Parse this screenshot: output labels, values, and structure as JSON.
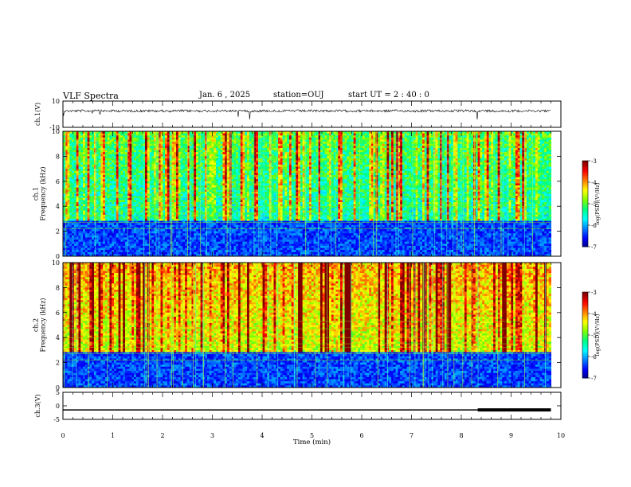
{
  "header": {
    "title": "VLF Spectra",
    "date": "Jan. 6 , 2025",
    "station": "station=OUJ",
    "start_ut": "start UT =  2 : 40 : 0"
  },
  "chart_data": [
    {
      "type": "line",
      "panel": "ch1-waveform",
      "ylabel": "ch.1(V)",
      "ylim": [
        -10,
        10
      ],
      "y_ticks": [
        "10",
        "-10"
      ],
      "xlim": [
        0,
        10
      ],
      "series": [
        {
          "values": [
            2.5
          ]
        }
      ]
    },
    {
      "type": "heatmap",
      "panel": "ch1-spectrogram",
      "ylabel": "ch.1\nFrequency (kHz)",
      "ylim": [
        0,
        10
      ],
      "y_ticks": [
        "0",
        "2",
        "4",
        "6",
        "8",
        "10"
      ],
      "xlim": [
        0,
        9.8
      ],
      "colorbar": {
        "label": "log(PSD)(V²/Hz)",
        "range": [
          -7,
          -3
        ],
        "ticks": [
          "-3",
          "-4",
          "-5",
          "-6",
          "-7"
        ]
      }
    },
    {
      "type": "heatmap",
      "panel": "ch2-spectrogram",
      "ylabel": "ch.2\nFrequency (kHz)",
      "ylim": [
        0,
        10
      ],
      "y_ticks": [
        "0",
        "2",
        "4",
        "6",
        "8",
        "10"
      ],
      "xlim": [
        0,
        9.8
      ],
      "colorbar": {
        "label": "log(PSD)(V²/Hz)",
        "range": [
          -7,
          -3
        ],
        "ticks": [
          "-3",
          "-4",
          "-5",
          "-6",
          "-7"
        ]
      }
    },
    {
      "type": "line",
      "panel": "ch3-timecode",
      "ylabel": "ch.3(V)",
      "ylim": [
        -5,
        5
      ],
      "y_ticks": [
        "5",
        "0",
        "-5"
      ],
      "xlim": [
        0,
        10
      ],
      "series": [
        {
          "values": [
            -1.5
          ]
        }
      ],
      "thick_segment_x": [
        8.33,
        9.8
      ]
    }
  ],
  "x_axis": {
    "label": "Time (min)",
    "ticks": [
      "0",
      "1",
      "2",
      "3",
      "4",
      "5",
      "6",
      "7",
      "8",
      "9",
      "10"
    ]
  },
  "colors": {
    "colormap": [
      "#000080",
      "#0000ff",
      "#0080ff",
      "#00ffff",
      "#00ff80",
      "#80ff00",
      "#ffff00",
      "#ff8000",
      "#ff0000",
      "#800000"
    ]
  }
}
